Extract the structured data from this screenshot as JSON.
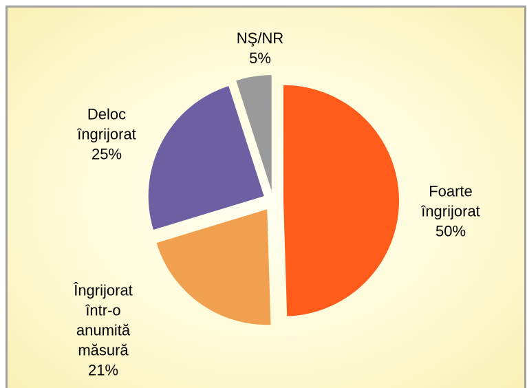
{
  "chart_data": {
    "type": "pie",
    "categories": [
      "Foarte îngrijorat",
      "Îngrijorat într-o anumită măsură",
      "Deloc îngrijorat",
      "NŞ/NR"
    ],
    "values": [
      50,
      21,
      25,
      5
    ],
    "value_labels": [
      "50%",
      "21%",
      "25%",
      "5%"
    ],
    "colors": [
      "#ff5b1a",
      "#f0a04e",
      "#6c60a2",
      "#9a9a9a"
    ]
  }
}
